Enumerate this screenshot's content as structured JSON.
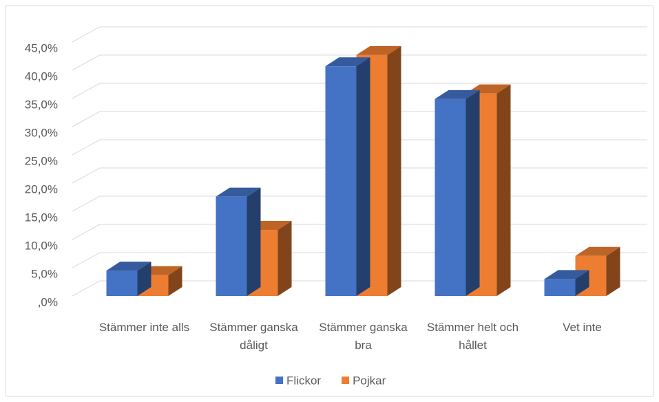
{
  "chart_data": {
    "type": "bar3d",
    "categories": [
      "Stämmer inte alls",
      "Stämmer ganska dåligt",
      "Stämmer ganska bra",
      "Stämmer helt och hållet",
      "Vet inte"
    ],
    "series": [
      {
        "name": "Flickor",
        "color": "#4472c4",
        "values": [
          4.5,
          17.6,
          40.7,
          34.9,
          3.0
        ]
      },
      {
        "name": "Pojkar",
        "color": "#ed7d31",
        "values": [
          3.7,
          11.7,
          42.7,
          35.9,
          7.1
        ]
      }
    ],
    "ylim": [
      0,
      45
    ],
    "yticks": [
      {
        "value": 0,
        "label": ",0%"
      },
      {
        "value": 5,
        "label": "5,0%"
      },
      {
        "value": 10,
        "label": "10,0%"
      },
      {
        "value": 15,
        "label": "15,0%"
      },
      {
        "value": 20,
        "label": "20,0%"
      },
      {
        "value": 25,
        "label": "25,0%"
      },
      {
        "value": 30,
        "label": "30,0%"
      },
      {
        "value": 35,
        "label": "35,0%"
      },
      {
        "value": 40,
        "label": "40,0%"
      },
      {
        "value": 45,
        "label": "45,0%"
      }
    ],
    "grid": true,
    "legend": "bottom"
  }
}
